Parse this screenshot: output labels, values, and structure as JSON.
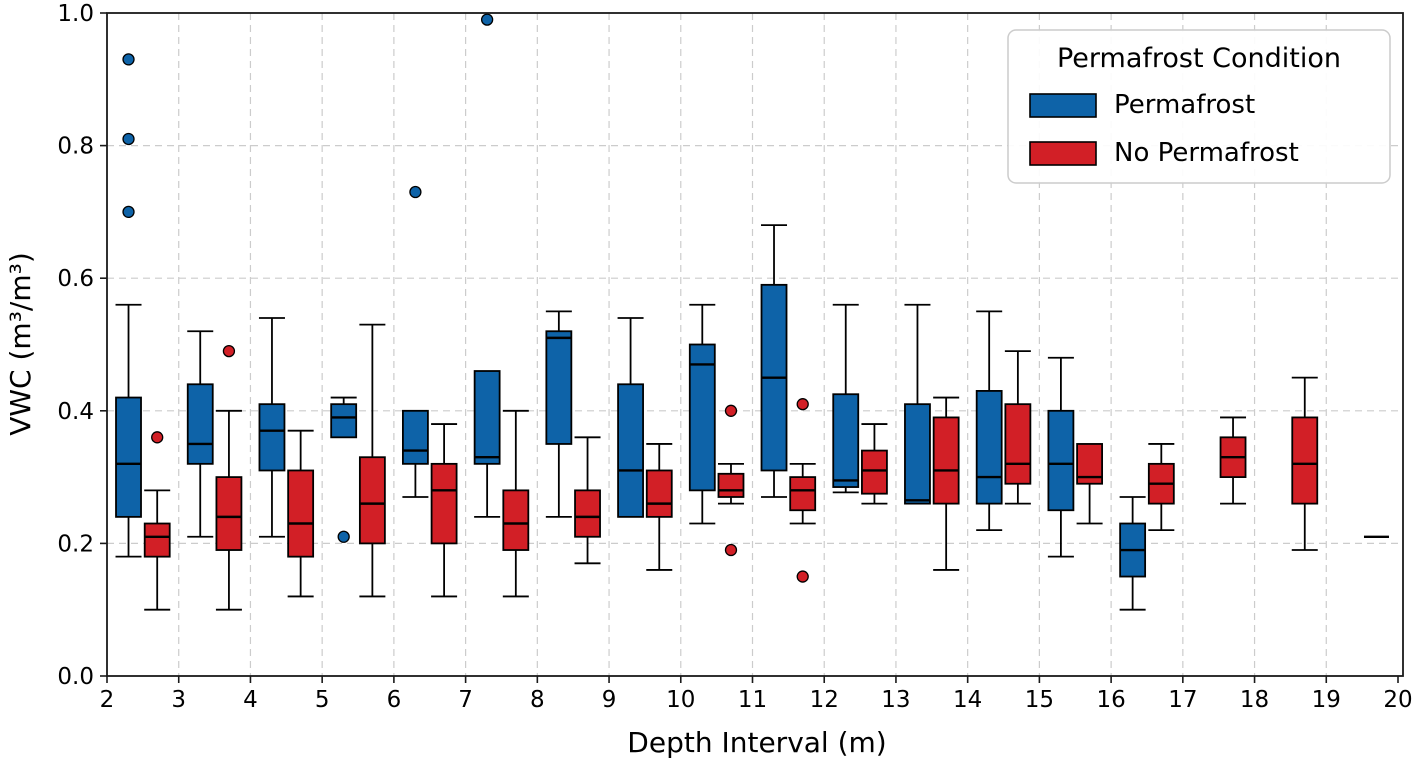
{
  "figure": {
    "background": "#ffffff",
    "frame_color": "#1a1a1a",
    "grid_color": "#cccccc"
  },
  "chart_data": {
    "type": "boxplot",
    "title": "",
    "xlabel": "Depth Interval (m)",
    "ylabel": "VWC (m³/m³)",
    "xlim": [
      2,
      20
    ],
    "ylim": [
      0.0,
      1.0
    ],
    "xticks": [
      2,
      3,
      4,
      5,
      6,
      7,
      8,
      9,
      10,
      11,
      12,
      13,
      14,
      15,
      16,
      17,
      18,
      19,
      20
    ],
    "ytick_labels": [
      "0.0",
      "0.2",
      "0.4",
      "0.6",
      "0.8",
      "1.0"
    ],
    "grid": true,
    "legend_position": "upper right",
    "legend_title": "Permafrost Condition",
    "series": [
      {
        "name": "Permafrost",
        "color": "#0e63a8",
        "offset": 0.3,
        "boxes": [
          {
            "x": 2,
            "whisker_low": 0.18,
            "q1": 0.24,
            "median": 0.32,
            "q3": 0.42,
            "whisker_high": 0.56,
            "outliers": [
              0.7,
              0.81,
              0.93
            ]
          },
          {
            "x": 3,
            "whisker_low": 0.21,
            "q1": 0.32,
            "median": 0.35,
            "q3": 0.44,
            "whisker_high": 0.52,
            "outliers": []
          },
          {
            "x": 4,
            "whisker_low": 0.21,
            "q1": 0.31,
            "median": 0.37,
            "q3": 0.41,
            "whisker_high": 0.54,
            "outliers": []
          },
          {
            "x": 5,
            "whisker_low": 0.36,
            "q1": 0.36,
            "median": 0.39,
            "q3": 0.41,
            "whisker_high": 0.42,
            "outliers": [
              0.21
            ]
          },
          {
            "x": 6,
            "whisker_low": 0.27,
            "q1": 0.32,
            "median": 0.34,
            "q3": 0.4,
            "whisker_high": 0.4,
            "outliers": [
              0.73
            ]
          },
          {
            "x": 7,
            "whisker_low": 0.24,
            "q1": 0.32,
            "median": 0.33,
            "q3": 0.46,
            "whisker_high": 0.46,
            "outliers": [
              0.99
            ]
          },
          {
            "x": 8,
            "whisker_low": 0.24,
            "q1": 0.35,
            "median": 0.51,
            "q3": 0.52,
            "whisker_high": 0.55,
            "outliers": []
          },
          {
            "x": 9,
            "whisker_low": 0.24,
            "q1": 0.24,
            "median": 0.31,
            "q3": 0.44,
            "whisker_high": 0.54,
            "outliers": []
          },
          {
            "x": 10,
            "whisker_low": 0.23,
            "q1": 0.28,
            "median": 0.47,
            "q3": 0.5,
            "whisker_high": 0.56,
            "outliers": []
          },
          {
            "x": 11,
            "whisker_low": 0.27,
            "q1": 0.31,
            "median": 0.45,
            "q3": 0.59,
            "whisker_high": 0.68,
            "outliers": []
          },
          {
            "x": 12,
            "whisker_low": 0.277,
            "q1": 0.285,
            "median": 0.295,
            "q3": 0.425,
            "whisker_high": 0.56,
            "outliers": []
          },
          {
            "x": 13,
            "whisker_low": 0.26,
            "q1": 0.26,
            "median": 0.265,
            "q3": 0.41,
            "whisker_high": 0.56,
            "outliers": []
          },
          {
            "x": 14,
            "whisker_low": 0.22,
            "q1": 0.26,
            "median": 0.3,
            "q3": 0.43,
            "whisker_high": 0.55,
            "outliers": []
          },
          {
            "x": 15,
            "whisker_low": 0.18,
            "q1": 0.25,
            "median": 0.32,
            "q3": 0.4,
            "whisker_high": 0.48,
            "outliers": []
          },
          {
            "x": 16,
            "whisker_low": 0.1,
            "q1": 0.15,
            "median": 0.19,
            "q3": 0.23,
            "whisker_high": 0.27,
            "outliers": []
          }
        ]
      },
      {
        "name": "No Permafrost",
        "color": "#d21f26",
        "offset": 0.7,
        "boxes": [
          {
            "x": 2,
            "whisker_low": 0.1,
            "q1": 0.18,
            "median": 0.21,
            "q3": 0.23,
            "whisker_high": 0.28,
            "outliers": [
              0.36
            ]
          },
          {
            "x": 3,
            "whisker_low": 0.1,
            "q1": 0.19,
            "median": 0.24,
            "q3": 0.3,
            "whisker_high": 0.4,
            "outliers": [
              0.49
            ]
          },
          {
            "x": 4,
            "whisker_low": 0.12,
            "q1": 0.18,
            "median": 0.23,
            "q3": 0.31,
            "whisker_high": 0.37,
            "outliers": []
          },
          {
            "x": 5,
            "whisker_low": 0.12,
            "q1": 0.2,
            "median": 0.26,
            "q3": 0.33,
            "whisker_high": 0.53,
            "outliers": []
          },
          {
            "x": 6,
            "whisker_low": 0.12,
            "q1": 0.2,
            "median": 0.28,
            "q3": 0.32,
            "whisker_high": 0.38,
            "outliers": []
          },
          {
            "x": 7,
            "whisker_low": 0.12,
            "q1": 0.19,
            "median": 0.23,
            "q3": 0.28,
            "whisker_high": 0.4,
            "outliers": []
          },
          {
            "x": 8,
            "whisker_low": 0.17,
            "q1": 0.21,
            "median": 0.24,
            "q3": 0.28,
            "whisker_high": 0.36,
            "outliers": []
          },
          {
            "x": 9,
            "whisker_low": 0.16,
            "q1": 0.24,
            "median": 0.26,
            "q3": 0.31,
            "whisker_high": 0.35,
            "outliers": []
          },
          {
            "x": 10,
            "whisker_low": 0.26,
            "q1": 0.27,
            "median": 0.28,
            "q3": 0.305,
            "whisker_high": 0.32,
            "outliers": [
              0.4,
              0.19
            ]
          },
          {
            "x": 11,
            "whisker_low": 0.23,
            "q1": 0.25,
            "median": 0.28,
            "q3": 0.3,
            "whisker_high": 0.32,
            "outliers": [
              0.41,
              0.15
            ]
          },
          {
            "x": 12,
            "whisker_low": 0.26,
            "q1": 0.275,
            "median": 0.31,
            "q3": 0.34,
            "whisker_high": 0.38,
            "outliers": []
          },
          {
            "x": 13,
            "whisker_low": 0.16,
            "q1": 0.26,
            "median": 0.31,
            "q3": 0.39,
            "whisker_high": 0.42,
            "outliers": []
          },
          {
            "x": 14,
            "whisker_low": 0.26,
            "q1": 0.29,
            "median": 0.32,
            "q3": 0.41,
            "whisker_high": 0.49,
            "outliers": []
          },
          {
            "x": 15,
            "whisker_low": 0.23,
            "q1": 0.29,
            "median": 0.3,
            "q3": 0.35,
            "whisker_high": 0.35,
            "outliers": []
          },
          {
            "x": 16,
            "whisker_low": 0.22,
            "q1": 0.26,
            "median": 0.29,
            "q3": 0.32,
            "whisker_high": 0.35,
            "outliers": []
          },
          {
            "x": 17,
            "whisker_low": 0.26,
            "q1": 0.3,
            "median": 0.33,
            "q3": 0.36,
            "whisker_high": 0.39,
            "outliers": []
          },
          {
            "x": 18,
            "whisker_low": 0.19,
            "q1": 0.26,
            "median": 0.32,
            "q3": 0.39,
            "whisker_high": 0.45,
            "outliers": []
          },
          {
            "x": 19,
            "whisker_low": 0.21,
            "q1": 0.21,
            "median": 0.21,
            "q3": 0.21,
            "whisker_high": 0.21,
            "outliers": []
          }
        ]
      }
    ]
  }
}
